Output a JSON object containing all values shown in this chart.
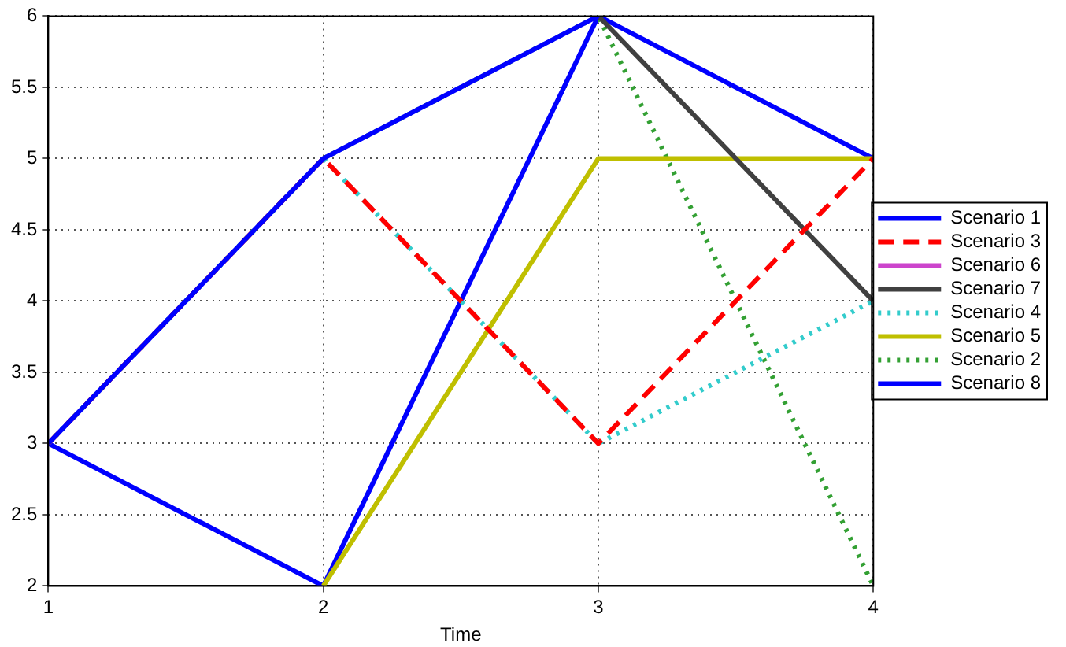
{
  "chart_data": {
    "type": "line",
    "xlabel": "Time",
    "x": [
      1,
      2,
      3,
      4
    ],
    "xlim": [
      1,
      4
    ],
    "xticks": [
      1,
      2,
      3,
      4
    ],
    "ylim": [
      2,
      6
    ],
    "yticks": [
      2,
      2.5,
      3,
      3.5,
      4,
      4.5,
      5,
      5.5,
      6
    ],
    "grid": true,
    "legend": "right",
    "marker": "none",
    "series": [
      {
        "name": "Scenario 1",
        "color": "#0000ff",
        "values": [
          3,
          5,
          6,
          null
        ]
      },
      {
        "name": "Scenario 3",
        "color": "#ff0000",
        "values": [
          3,
          5,
          3,
          5
        ],
        "line_style": "dashed"
      },
      {
        "name": "Scenario 6",
        "color": "#cc44cc",
        "values": [
          null,
          null,
          null,
          null
        ]
      },
      {
        "name": "Scenario 7",
        "color": "#404040",
        "values": [
          null,
          null,
          6,
          4
        ]
      },
      {
        "name": "Scenario 4",
        "color": "#33cccc",
        "values": [
          3,
          5,
          3,
          4
        ],
        "line_style": "dotted"
      },
      {
        "name": "Scenario 5",
        "color": "#bfbf00",
        "values": [
          null,
          2,
          5,
          5
        ]
      },
      {
        "name": "Scenario 2",
        "color": "#33a033",
        "values": [
          3,
          5,
          6,
          2
        ],
        "line_style": "dotted"
      },
      {
        "name": "Scenario 8",
        "color": "#0000ff",
        "values": [
          3,
          2,
          6,
          5
        ]
      }
    ]
  }
}
